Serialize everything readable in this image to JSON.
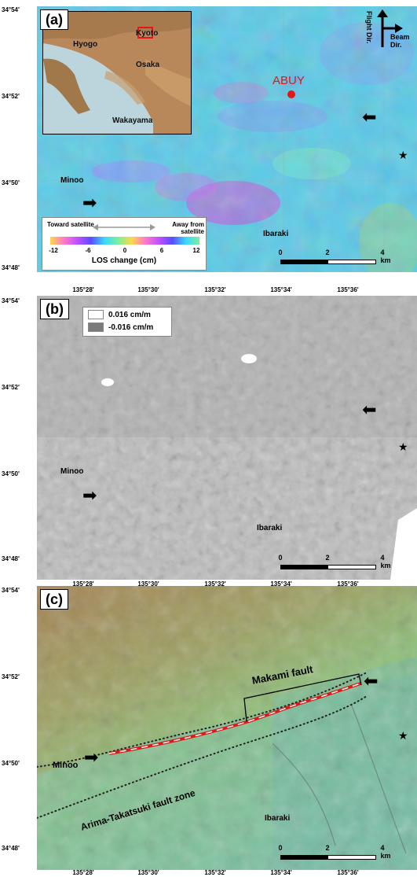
{
  "lat_labels": [
    "34°54'",
    "34°52'",
    "34°50'",
    "34°48'"
  ],
  "lon_labels": [
    "135°28'",
    "135°30'",
    "135°32'",
    "135°34'",
    "135°36'"
  ],
  "scale": {
    "zero": "0",
    "mid": "2",
    "end": "4 km"
  },
  "star": "★",
  "arrow": "➡",
  "panel_a": {
    "label": "(a)",
    "inset_places": {
      "kyoto": "Kyoto",
      "hyogo": "Hyogo",
      "osaka": "Osaka",
      "wakayama": "Wakayama"
    },
    "station": "ABUY",
    "flight_dir": "Flight Dir.",
    "beam_dir": "Beam Dir.",
    "minoo": "Minoo",
    "ibaraki": "Ibaraki",
    "legend": {
      "toward": "Toward satellite",
      "away": "Away from satellite",
      "ticks": [
        "-12",
        "-6",
        "0",
        "6",
        "12"
      ],
      "title": "LOS change (cm)"
    },
    "colors": {
      "station": "#e01818",
      "inset_box": "#e01818"
    }
  },
  "panel_b": {
    "label": "(b)",
    "legend": {
      "pos": "0.016 cm/m",
      "neg": "-0.016 cm/m"
    },
    "minoo": "Minoo",
    "ibaraki": "Ibaraki"
  },
  "panel_c": {
    "label": "(c)",
    "makami": "Makami fault",
    "minoo": "Minoo",
    "arima": "Arima-Takatsuki fault zone",
    "ibaraki": "Ibaraki",
    "colors": {
      "fault": "#d81c1c"
    }
  }
}
